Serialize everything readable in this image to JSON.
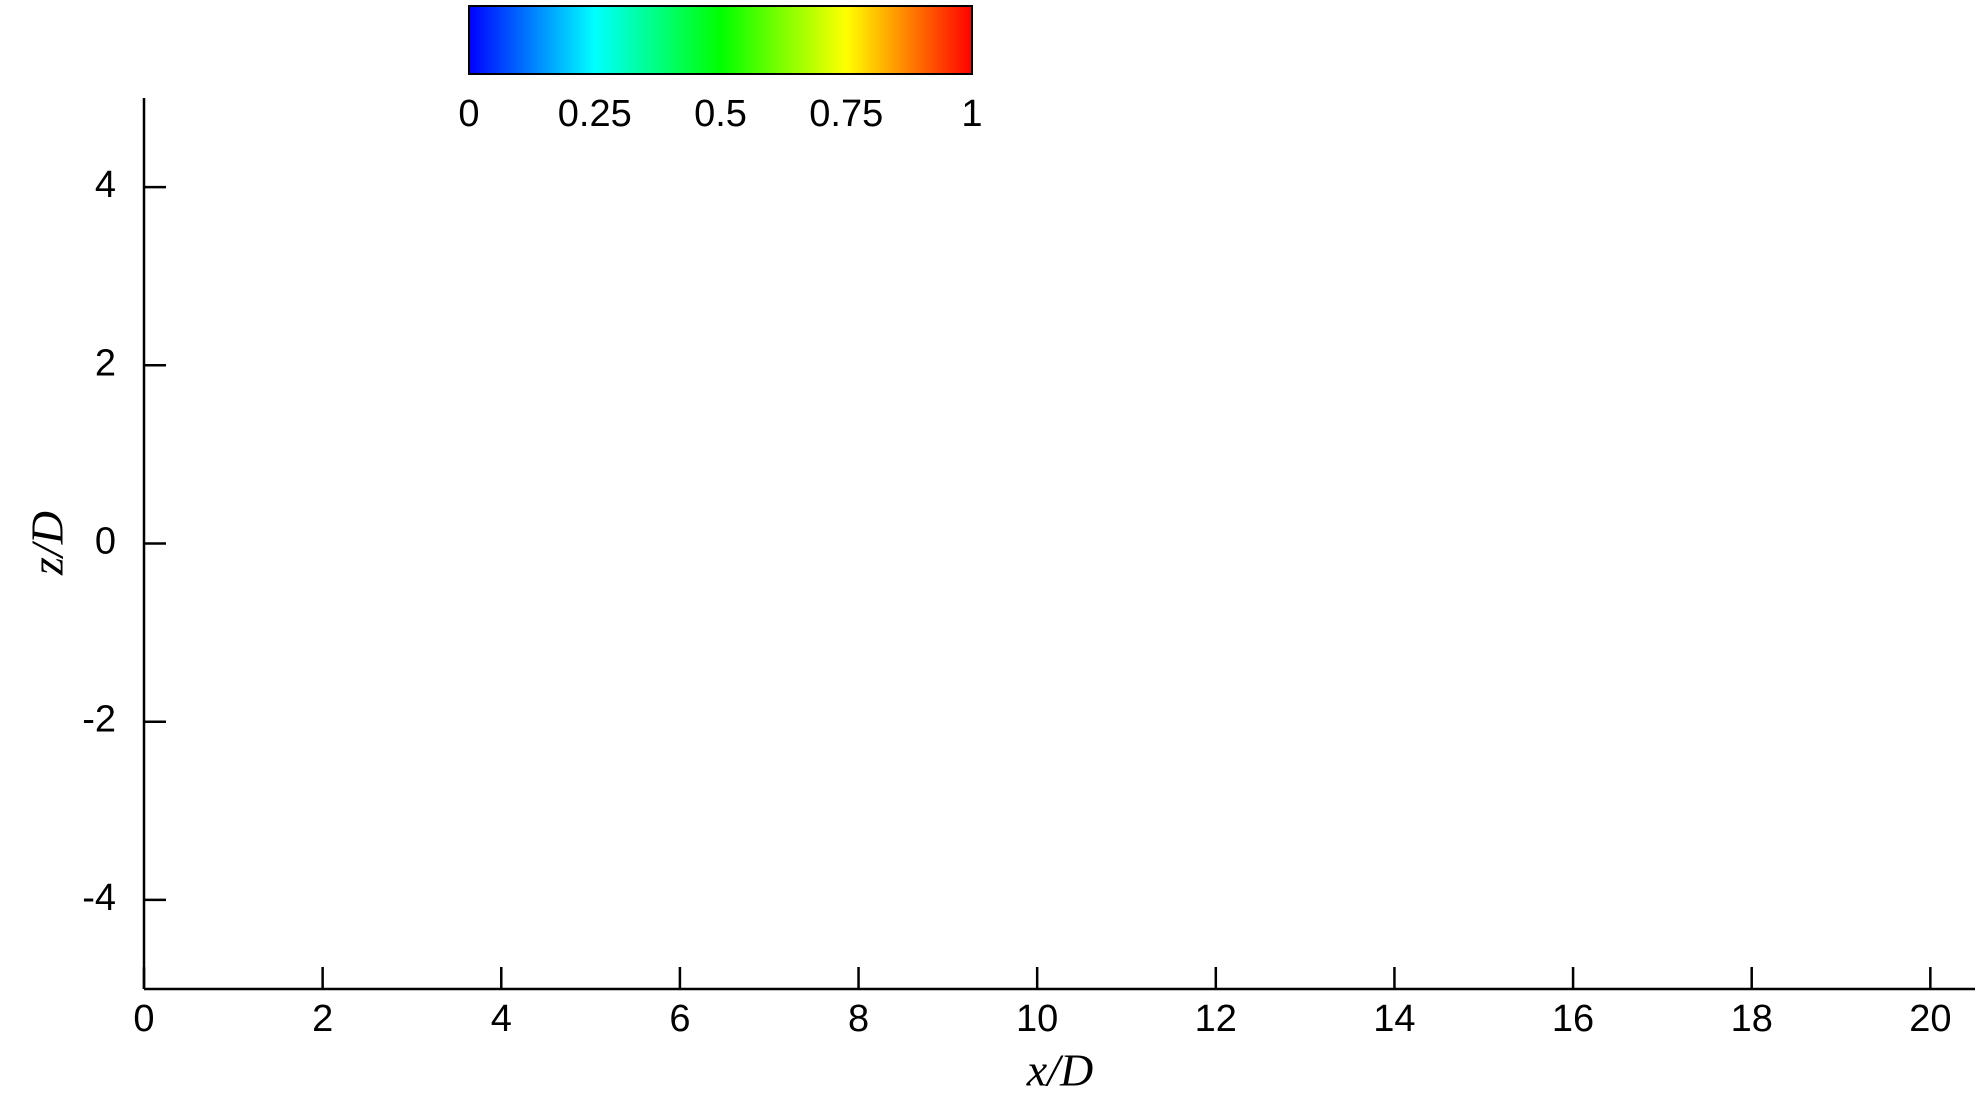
{
  "chart_data": {
    "type": "contour",
    "x_label": "x/D",
    "y_label": "z/D",
    "xlim": [
      0,
      20.5
    ],
    "xticks": [
      0,
      2,
      4,
      6,
      8,
      10,
      12,
      14,
      16,
      18,
      20
    ],
    "ylim": [
      -5,
      5
    ],
    "yticks": [
      -4,
      -2,
      0,
      2,
      4
    ],
    "colorbar": {
      "lim": [
        0,
        1
      ],
      "ticks": [
        0,
        0.25,
        0.5,
        0.75,
        1
      ],
      "colors": [
        "#0000ff",
        "#00ffff",
        "#00ff00",
        "#ffff00",
        "#ff0000"
      ]
    }
  }
}
